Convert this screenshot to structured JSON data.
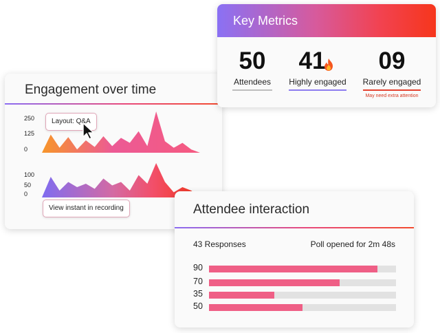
{
  "engagement": {
    "title": "Engagement over time",
    "chart1_ticks": [
      "250",
      "125",
      "0"
    ],
    "chart2_ticks": [
      "100",
      "50",
      "0"
    ],
    "layout_pill": "Layout: Q&A",
    "recording_pill": "View instant in recording",
    "chart_data": {
      "type": "area",
      "series": [
        {
          "values": [
            0,
            110,
            30,
            95,
            20,
            75,
            35,
            100,
            40,
            90,
            60,
            130,
            40,
            250,
            70,
            30,
            60,
            20,
            0
          ]
        },
        {
          "values": [
            0,
            60,
            20,
            45,
            30,
            40,
            25,
            55,
            35,
            45,
            20,
            65,
            40,
            100,
            45,
            15,
            30,
            20,
            0
          ]
        }
      ]
    }
  },
  "key_metrics": {
    "title": "Key Metrics",
    "attendees": {
      "value": "50",
      "label": "Attendees"
    },
    "highly": {
      "value": "41",
      "label": "Highly engaged"
    },
    "rarely": {
      "value": "09",
      "label": "Rarely engaged",
      "note": "May need extra attention"
    },
    "icon": "fire-icon"
  },
  "interaction": {
    "title": "Attendee interaction",
    "responses": "43 Responses",
    "poll_status": "Poll opened for 2m 48s",
    "bars": [
      {
        "label": "90",
        "value": 90
      },
      {
        "label": "70",
        "value": 70
      },
      {
        "label": "35",
        "value": 35
      },
      {
        "label": "50",
        "value": 50
      }
    ]
  },
  "colors": {
    "accent_pink": "#ef5f86",
    "accent_purple": "#8b6cf2",
    "accent_red": "#f24a2e"
  }
}
